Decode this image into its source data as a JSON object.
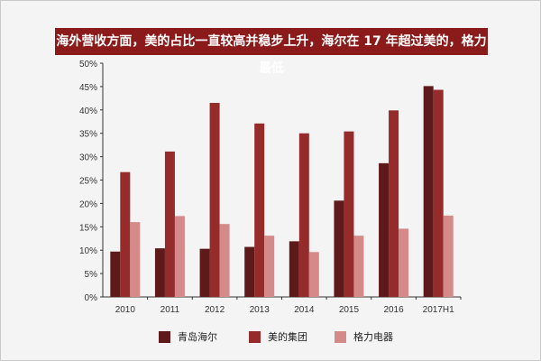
{
  "chart_data": {
    "type": "bar",
    "title": "海外营收方面，美的占比一直较高并稳步上升，海尔在 17 年超过美的，格力最低",
    "categories": [
      "2010",
      "2011",
      "2012",
      "2013",
      "2014",
      "2015",
      "2016",
      "2017H1"
    ],
    "series": [
      {
        "name": "青岛海尔",
        "color": "#5e1a1a",
        "values": [
          9.7,
          10.4,
          10.3,
          10.7,
          11.9,
          20.6,
          28.6,
          45.1
        ]
      },
      {
        "name": "美的集团",
        "color": "#962b2b",
        "values": [
          26.7,
          31.1,
          41.5,
          37.1,
          35.0,
          35.4,
          39.9,
          44.3
        ]
      },
      {
        "name": "格力电器",
        "color": "#d58a8a",
        "values": [
          16.0,
          17.3,
          15.6,
          13.1,
          9.6,
          13.1,
          14.6,
          17.4
        ]
      }
    ],
    "yticks": [
      "0%",
      "5%",
      "10%",
      "15%",
      "20%",
      "25%",
      "30%",
      "35%",
      "40%",
      "45%",
      "50%"
    ],
    "ylim": [
      0,
      50
    ],
    "grid": false,
    "legend": "bottom"
  }
}
